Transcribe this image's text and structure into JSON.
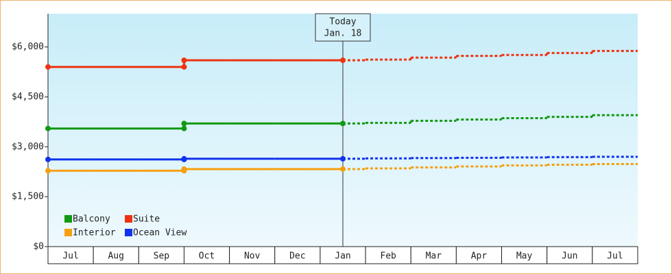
{
  "chart_data": {
    "type": "step-line",
    "annotation": {
      "label": "Today",
      "date": "Jan. 18"
    },
    "categories": [
      "Jul",
      "Aug",
      "Sep",
      "Oct",
      "Nov",
      "Dec",
      "Jan",
      "Feb",
      "Mar",
      "Apr",
      "May",
      "Jun",
      "Jul"
    ],
    "series": [
      {
        "name": "Balcony",
        "color": "#119911",
        "values": [
          3550,
          3550,
          3550,
          3700,
          3700,
          3700,
          3700,
          3720,
          3780,
          3820,
          3860,
          3900,
          3950
        ]
      },
      {
        "name": "Suite",
        "color": "#ee3311",
        "values": [
          5400,
          5400,
          5400,
          5600,
          5600,
          5600,
          5600,
          5620,
          5680,
          5730,
          5760,
          5820,
          5880
        ]
      },
      {
        "name": "Interior",
        "color": "#f5a010",
        "values": [
          2280,
          2280,
          2280,
          2330,
          2330,
          2330,
          2330,
          2350,
          2380,
          2410,
          2440,
          2460,
          2480
        ]
      },
      {
        "name": "Ocean View",
        "color": "#1133ee",
        "values": [
          2620,
          2620,
          2620,
          2640,
          2640,
          2640,
          2640,
          2650,
          2660,
          2670,
          2680,
          2690,
          2700
        ]
      }
    ],
    "ylim": [
      0,
      7000
    ],
    "yticks": [
      {
        "value": 0,
        "label": "$0"
      },
      {
        "value": 1500,
        "label": "$1,500"
      },
      {
        "value": 3000,
        "label": "$3,000"
      },
      {
        "value": 4500,
        "label": "$4,500"
      },
      {
        "value": 6000,
        "label": "$6,000"
      }
    ],
    "legend": "bottom-left"
  }
}
